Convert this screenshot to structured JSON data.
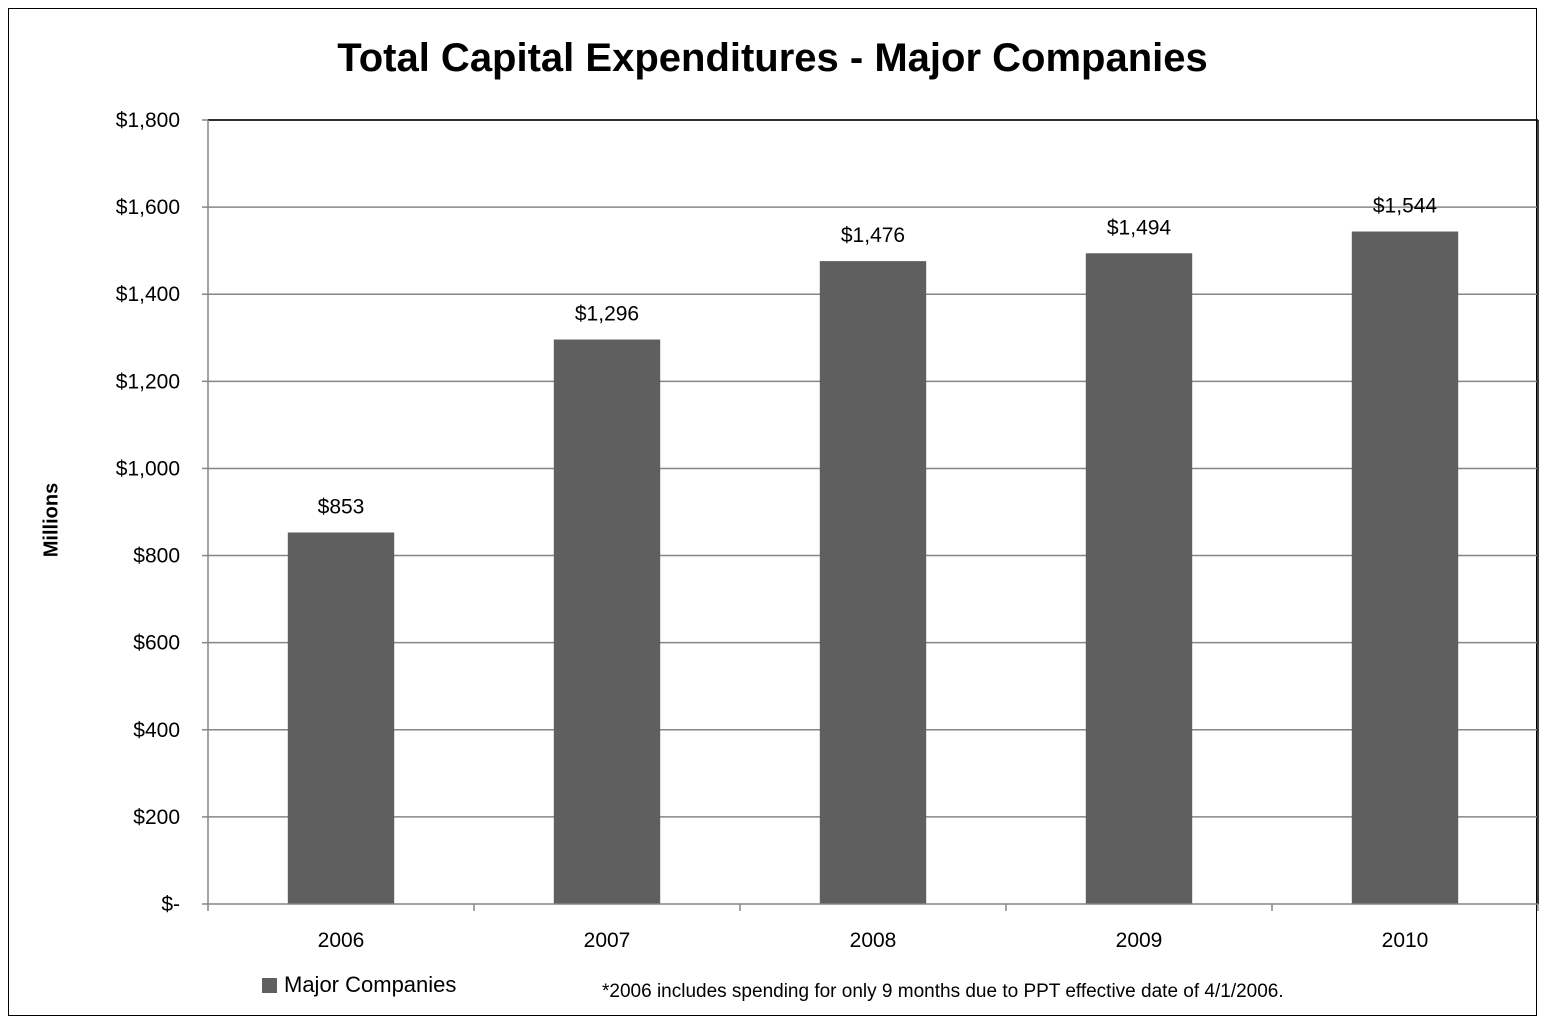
{
  "chart_data": {
    "type": "bar",
    "title": "Total Capital Expenditures - Major Companies",
    "xlabel": "",
    "ylabel": "Millions",
    "categories": [
      "2006",
      "2007",
      "2008",
      "2009",
      "2010"
    ],
    "series": [
      {
        "name": "Major Companies",
        "values": [
          853,
          1296,
          1476,
          1494,
          1544
        ],
        "labels": [
          "$853",
          "$1,296",
          "$1,476",
          "$1,494",
          "$1,544"
        ],
        "color": "#5f5f5f"
      }
    ],
    "ylim": [
      0,
      1800
    ],
    "yticks": [
      0,
      200,
      400,
      600,
      800,
      1000,
      1200,
      1400,
      1600,
      1800
    ],
    "ytick_labels": [
      "$-",
      "$200",
      "$400",
      "$600",
      "$800",
      "$1,000",
      "$1,200",
      "$1,400",
      "$1,600",
      "$1,800"
    ],
    "grid": true,
    "legend_position": "bottom-left",
    "footnote": "*2006 includes spending for only 9 months due to PPT effective date of 4/1/2006."
  }
}
